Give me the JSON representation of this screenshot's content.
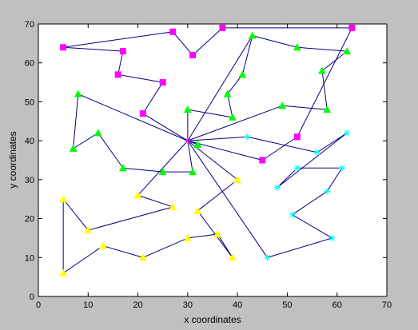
{
  "chart_data": {
    "type": "scatter",
    "title": "",
    "xlabel": "x coordinates",
    "ylabel": "y coordinates",
    "xlim": [
      0,
      70
    ],
    "ylim": [
      0,
      70
    ],
    "xticks": [
      0,
      10,
      20,
      30,
      40,
      50,
      60,
      70
    ],
    "yticks": [
      0,
      10,
      20,
      30,
      40,
      50,
      60,
      70
    ],
    "grid": false,
    "line_color": "#000080",
    "center": {
      "x": 30,
      "y": 40,
      "marker": "star",
      "color": "#ff00ff"
    },
    "series": [
      {
        "marker": "square",
        "color": "#ff00ff",
        "points": [
          [
            5,
            64
          ],
          [
            17,
            63
          ],
          [
            16,
            57
          ],
          [
            25,
            55
          ],
          [
            21,
            47
          ]
        ],
        "edges": [
          [
            [
              5,
              64
            ],
            [
              27,
              68
            ]
          ],
          [
            [
              27,
              68
            ],
            [
              31,
              62
            ]
          ],
          [
            [
              31,
              62
            ],
            [
              37,
              69
            ]
          ],
          [
            [
              37,
              69
            ],
            [
              63,
              69
            ]
          ],
          [
            [
              63,
              69
            ],
            [
              52,
              41
            ]
          ],
          [
            [
              52,
              41
            ],
            [
              45,
              35
            ]
          ],
          [
            [
              45,
              35
            ],
            [
              30,
              40
            ]
          ],
          [
            [
              5,
              64
            ],
            [
              17,
              63
            ]
          ],
          [
            [
              17,
              63
            ],
            [
              16,
              57
            ]
          ],
          [
            [
              16,
              57
            ],
            [
              25,
              55
            ]
          ],
          [
            [
              25,
              55
            ],
            [
              21,
              47
            ]
          ],
          [
            [
              21,
              47
            ],
            [
              30,
              40
            ]
          ]
        ],
        "extra_points": [
          [
            27,
            68
          ],
          [
            31,
            62
          ],
          [
            37,
            69
          ],
          [
            63,
            69
          ],
          [
            52,
            41
          ],
          [
            45,
            35
          ]
        ]
      },
      {
        "marker": "triangle",
        "color": "#00ff00",
        "points": [
          [
            43,
            67
          ],
          [
            52,
            64
          ],
          [
            62,
            63
          ],
          [
            57,
            58
          ],
          [
            58,
            48
          ],
          [
            49,
            49
          ],
          [
            41,
            57
          ],
          [
            38,
            52
          ],
          [
            39,
            46
          ],
          [
            30,
            48
          ],
          [
            8,
            52
          ],
          [
            7,
            38
          ],
          [
            12,
            42
          ],
          [
            17,
            33
          ],
          [
            25,
            32
          ],
          [
            31,
            32
          ],
          [
            32,
            39
          ]
        ],
        "edges": [
          [
            [
              30,
              40
            ],
            [
              43,
              67
            ]
          ],
          [
            [
              43,
              67
            ],
            [
              41,
              57
            ]
          ],
          [
            [
              41,
              57
            ],
            [
              38,
              52
            ]
          ],
          [
            [
              38,
              52
            ],
            [
              39,
              46
            ]
          ],
          [
            [
              39,
              46
            ],
            [
              30,
              48
            ]
          ],
          [
            [
              30,
              48
            ],
            [
              30,
              40
            ]
          ],
          [
            [
              30,
              40
            ],
            [
              49,
              49
            ]
          ],
          [
            [
              49,
              49
            ],
            [
              58,
              48
            ]
          ],
          [
            [
              58,
              48
            ],
            [
              57,
              58
            ]
          ],
          [
            [
              57,
              58
            ],
            [
              62,
              63
            ]
          ],
          [
            [
              62,
              63
            ],
            [
              52,
              64
            ]
          ],
          [
            [
              52,
              64
            ],
            [
              43,
              67
            ]
          ],
          [
            [
              30,
              40
            ],
            [
              8,
              52
            ]
          ],
          [
            [
              8,
              52
            ],
            [
              7,
              38
            ]
          ],
          [
            [
              7,
              38
            ],
            [
              12,
              42
            ]
          ],
          [
            [
              12,
              42
            ],
            [
              17,
              33
            ]
          ],
          [
            [
              17,
              33
            ],
            [
              25,
              32
            ]
          ],
          [
            [
              25,
              32
            ],
            [
              31,
              32
            ]
          ],
          [
            [
              31,
              32
            ],
            [
              30,
              40
            ]
          ],
          [
            [
              30,
              40
            ],
            [
              32,
              39
            ]
          ]
        ]
      },
      {
        "marker": "star",
        "color": "#00ffff",
        "points": [
          [
            42,
            41
          ],
          [
            56,
            37
          ],
          [
            62,
            42
          ],
          [
            48,
            28
          ],
          [
            52,
            33
          ],
          [
            61,
            33
          ],
          [
            58,
            27
          ],
          [
            51,
            21
          ],
          [
            59,
            15
          ],
          [
            46,
            10
          ]
        ],
        "edges": [
          [
            [
              30,
              40
            ],
            [
              42,
              41
            ]
          ],
          [
            [
              42,
              41
            ],
            [
              56,
              37
            ]
          ],
          [
            [
              56,
              37
            ],
            [
              62,
              42
            ]
          ],
          [
            [
              62,
              42
            ],
            [
              48,
              28
            ]
          ],
          [
            [
              48,
              28
            ],
            [
              52,
              33
            ]
          ],
          [
            [
              52,
              33
            ],
            [
              61,
              33
            ]
          ],
          [
            [
              61,
              33
            ],
            [
              58,
              27
            ]
          ],
          [
            [
              58,
              27
            ],
            [
              51,
              21
            ]
          ],
          [
            [
              51,
              21
            ],
            [
              59,
              15
            ]
          ],
          [
            [
              59,
              15
            ],
            [
              46,
              10
            ]
          ],
          [
            [
              46,
              10
            ],
            [
              30,
              40
            ]
          ]
        ]
      },
      {
        "marker": "triangle",
        "color": "#ffff00",
        "points": [
          [
            20,
            26
          ],
          [
            27,
            23
          ],
          [
            10,
            17
          ],
          [
            5,
            25
          ],
          [
            5,
            6
          ],
          [
            13,
            13
          ],
          [
            21,
            10
          ],
          [
            30,
            15
          ],
          [
            36,
            16
          ],
          [
            39,
            10
          ],
          [
            32,
            22
          ],
          [
            40,
            30
          ]
        ],
        "edges": [
          [
            [
              30,
              40
            ],
            [
              20,
              26
            ]
          ],
          [
            [
              20,
              26
            ],
            [
              27,
              23
            ]
          ],
          [
            [
              27,
              23
            ],
            [
              10,
              17
            ]
          ],
          [
            [
              10,
              17
            ],
            [
              5,
              25
            ]
          ],
          [
            [
              5,
              25
            ],
            [
              5,
              6
            ]
          ],
          [
            [
              5,
              6
            ],
            [
              13,
              13
            ]
          ],
          [
            [
              13,
              13
            ],
            [
              21,
              10
            ]
          ],
          [
            [
              21,
              10
            ],
            [
              30,
              15
            ]
          ],
          [
            [
              30,
              15
            ],
            [
              36,
              16
            ]
          ],
          [
            [
              36,
              16
            ],
            [
              39,
              10
            ]
          ],
          [
            [
              39,
              10
            ],
            [
              32,
              22
            ]
          ],
          [
            [
              32,
              22
            ],
            [
              40,
              30
            ]
          ],
          [
            [
              40,
              30
            ],
            [
              30,
              40
            ]
          ]
        ]
      }
    ]
  }
}
